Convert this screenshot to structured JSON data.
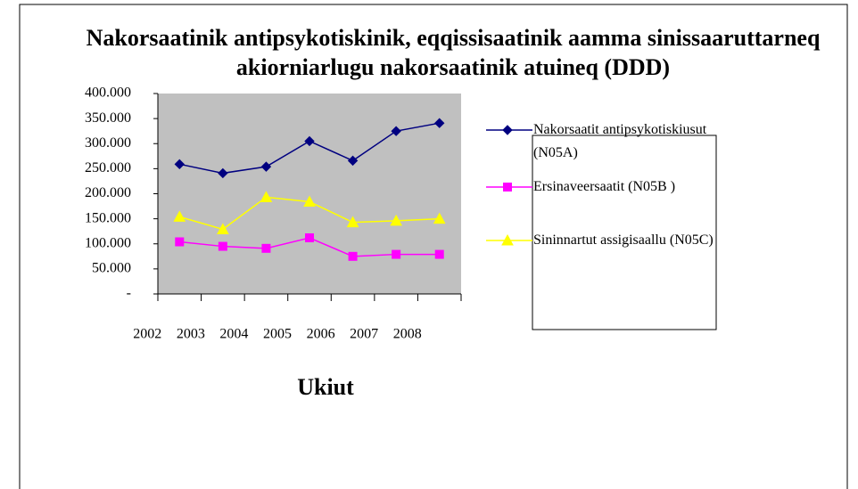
{
  "chart_data": {
    "type": "line",
    "title": "Nakorsaatinik antipsykotiskinik, eqqissisaatinik aamma sinissaaruttarneq akiorniarlugu nakorsaatinik atuineq (DDD)",
    "x_label": "Ukiut",
    "categories": [
      "2002",
      "2003",
      "2004",
      "2005",
      "2006",
      "2007",
      "2008"
    ],
    "ylim": [
      0,
      400000
    ],
    "yticks": [
      {
        "value": 0,
        "label": "-"
      },
      {
        "value": 50000,
        "label": "50.000"
      },
      {
        "value": 100000,
        "label": "100.000"
      },
      {
        "value": 150000,
        "label": "150.000"
      },
      {
        "value": 200000,
        "label": "200.000"
      },
      {
        "value": 250000,
        "label": "250.000"
      },
      {
        "value": 300000,
        "label": "300.000"
      },
      {
        "value": 350000,
        "label": "350.000"
      },
      {
        "value": 400000,
        "label": "400.000"
      }
    ],
    "legend": "right",
    "series": [
      {
        "name": "Nakorsaatit antipsykotiskiusut (N05A)",
        "color": "#000080",
        "marker": "diamond",
        "values": [
          259000,
          241000,
          254000,
          305000,
          266000,
          325000,
          341000
        ]
      },
      {
        "name": "Ersinaveersaatit (N05B )",
        "color": "#ff00ff",
        "marker": "square",
        "values": [
          104000,
          95000,
          91000,
          112000,
          75000,
          79000,
          79000
        ]
      },
      {
        "name": "Sininnartut assigisaallu (N05C)",
        "color": "#ffff00",
        "marker": "triangle",
        "values": [
          154000,
          129000,
          193000,
          184000,
          143000,
          146000,
          150000
        ]
      }
    ]
  }
}
